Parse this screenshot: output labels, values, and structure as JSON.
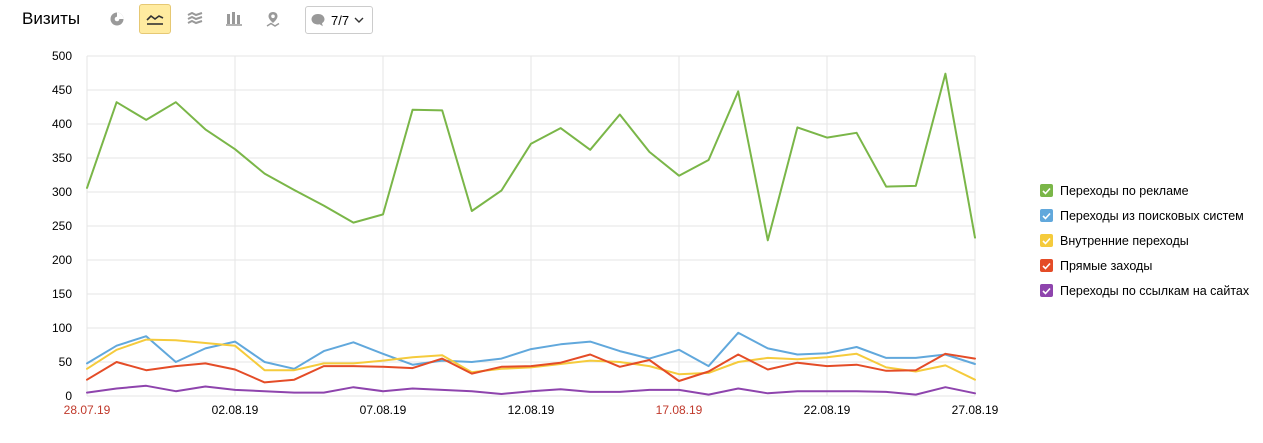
{
  "title": "Визиты",
  "toolbar": {
    "buttons": [
      {
        "icon": "pie-chart-icon",
        "active": false
      },
      {
        "icon": "line-chart-icon",
        "active": true
      },
      {
        "icon": "area-chart-icon",
        "active": false
      },
      {
        "icon": "bar-chart-icon",
        "active": false
      },
      {
        "icon": "map-icon",
        "active": false
      }
    ],
    "series_selector": "7/7"
  },
  "colors": {
    "accent_active_bg": "#ffeba0",
    "grid": "#e6e6e6",
    "weekend_label": "#c0392b"
  },
  "chart_data": {
    "type": "line",
    "title": "Визиты",
    "x": [
      "28.07.19",
      "29.07.19",
      "30.07.19",
      "31.07.19",
      "01.08.19",
      "02.08.19",
      "03.08.19",
      "04.08.19",
      "05.08.19",
      "06.08.19",
      "07.08.19",
      "08.08.19",
      "09.08.19",
      "10.08.19",
      "11.08.19",
      "12.08.19",
      "13.08.19",
      "14.08.19",
      "15.08.19",
      "16.08.19",
      "17.08.19",
      "18.08.19",
      "19.08.19",
      "20.08.19",
      "21.08.19",
      "22.08.19",
      "23.08.19",
      "24.08.19",
      "25.08.19",
      "26.08.19",
      "27.08.19"
    ],
    "x_tick_labels": [
      {
        "label": "28.07.19",
        "weekend": true
      },
      {
        "label": "02.08.19",
        "weekend": false
      },
      {
        "label": "07.08.19",
        "weekend": false
      },
      {
        "label": "12.08.19",
        "weekend": false
      },
      {
        "label": "17.08.19",
        "weekend": true
      },
      {
        "label": "22.08.19",
        "weekend": false
      },
      {
        "label": "27.08.19",
        "weekend": false
      }
    ],
    "y_ticks": [
      0,
      50,
      100,
      150,
      200,
      250,
      300,
      350,
      400,
      450,
      500
    ],
    "ylim": [
      0,
      500
    ],
    "grid": true,
    "legend_position": "right",
    "series": [
      {
        "name": "Переходы по рекламе",
        "color": "#7ab648",
        "values": [
          306,
          432,
          406,
          432,
          392,
          363,
          327,
          303,
          280,
          255,
          267,
          421,
          420,
          272,
          302,
          371,
          394,
          362,
          414,
          359,
          324,
          347,
          448,
          229,
          395,
          380,
          387,
          308,
          309,
          474,
          233
        ]
      },
      {
        "name": "Переходы из поисковых систем",
        "color": "#61a8dc",
        "values": [
          48,
          74,
          88,
          50,
          70,
          80,
          50,
          40,
          66,
          79,
          62,
          46,
          52,
          50,
          55,
          69,
          76,
          80,
          66,
          55,
          68,
          44,
          93,
          70,
          61,
          63,
          72,
          56,
          56,
          61,
          47
        ]
      },
      {
        "name": "Внутренние переходы",
        "color": "#f5cb3c",
        "values": [
          40,
          68,
          83,
          82,
          78,
          74,
          38,
          38,
          48,
          48,
          52,
          57,
          60,
          35,
          40,
          42,
          47,
          52,
          50,
          44,
          32,
          34,
          50,
          56,
          54,
          57,
          62,
          42,
          36,
          45,
          24
        ]
      },
      {
        "name": "Прямые заходы",
        "color": "#e44c27",
        "values": [
          24,
          50,
          38,
          44,
          48,
          39,
          20,
          24,
          44,
          44,
          43,
          41,
          55,
          33,
          43,
          44,
          49,
          61,
          43,
          53,
          22,
          36,
          61,
          39,
          49,
          44,
          46,
          37,
          38,
          62,
          55
        ]
      },
      {
        "name": "Переходы по ссылкам на сайтах",
        "color": "#8e44ad",
        "values": [
          5,
          11,
          15,
          7,
          14,
          9,
          7,
          5,
          5,
          13,
          7,
          11,
          9,
          7,
          3,
          7,
          10,
          6,
          6,
          9,
          9,
          2,
          11,
          4,
          7,
          7,
          7,
          6,
          2,
          13,
          4
        ]
      }
    ]
  }
}
